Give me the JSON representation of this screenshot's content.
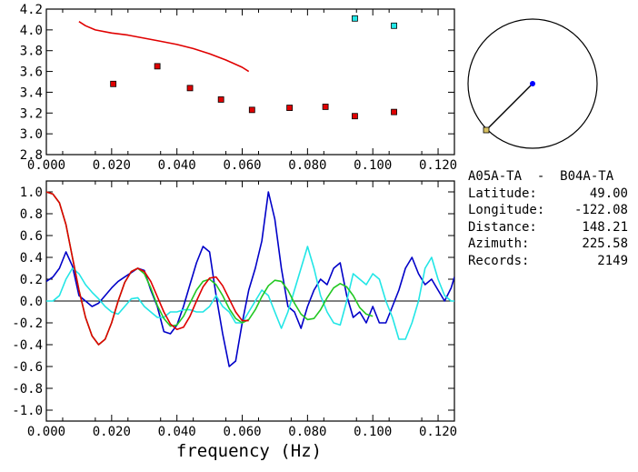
{
  "colors": {
    "red": "#e00000",
    "blue": "#0000c8",
    "cyan": "#22e6e6",
    "green": "#22c822",
    "black": "#000000",
    "map_dot": "#0000ff",
    "map_sq": "#d8c060"
  },
  "station_pair": "A05A-TA  -  B04A-TA",
  "info": [
    {
      "label": "Latitude:",
      "value": "49.00"
    },
    {
      "label": "Longitude:",
      "value": "-122.08"
    },
    {
      "label": "Distance:",
      "value": "148.21"
    },
    {
      "label": "Azimuth:",
      "value": "225.58"
    },
    {
      "label": "Records:",
      "value": "2149"
    }
  ],
  "chart_data": [
    {
      "type": "scatter",
      "title": "",
      "xlabel": "",
      "ylabel": "",
      "xlim": [
        0.0,
        0.125
      ],
      "ylim": [
        2.8,
        4.2
      ],
      "x_ticks": [
        "0.000",
        "0.020",
        "0.040",
        "0.060",
        "0.080",
        "0.100",
        "0.120"
      ],
      "y_ticks": [
        "2.8",
        "3.0",
        "3.2",
        "3.4",
        "3.6",
        "3.8",
        "4.0",
        "4.2"
      ],
      "series": [
        {
          "kind": "line",
          "color": "red",
          "x": [
            0.01,
            0.012,
            0.015,
            0.02,
            0.025,
            0.03,
            0.035,
            0.04,
            0.045,
            0.05,
            0.055,
            0.06,
            0.062
          ],
          "y": [
            4.08,
            4.04,
            4.0,
            3.97,
            3.95,
            3.92,
            3.89,
            3.86,
            3.82,
            3.77,
            3.71,
            3.64,
            3.6
          ]
        },
        {
          "kind": "points",
          "color": "red",
          "x": [
            0.0205,
            0.034,
            0.044,
            0.0535,
            0.063,
            0.0745,
            0.0855,
            0.0945,
            0.1065
          ],
          "y": [
            3.48,
            3.65,
            3.44,
            3.33,
            3.23,
            3.25,
            3.26,
            3.17,
            3.21
          ]
        },
        {
          "kind": "points",
          "color": "cyan",
          "x": [
            0.0945,
            0.1065
          ],
          "y": [
            4.11,
            4.04
          ]
        }
      ]
    },
    {
      "type": "line",
      "title": "",
      "xlabel": "frequency  (Hz)",
      "ylabel": "",
      "xlim": [
        0.0,
        0.125
      ],
      "ylim": [
        -1.1,
        1.1
      ],
      "x_ticks": [
        "0.000",
        "0.020",
        "0.040",
        "0.060",
        "0.080",
        "0.100",
        "0.120"
      ],
      "y_ticks": [
        "1.0",
        "0.8",
        "0.6",
        "0.4",
        "0.2",
        "0.0",
        "-0.2",
        "-0.4",
        "-0.6",
        "-0.8",
        "-1.0"
      ],
      "series": [
        {
          "color": "blue",
          "x": [
            0.0,
            0.002,
            0.004,
            0.006,
            0.008,
            0.01,
            0.012,
            0.014,
            0.016,
            0.018,
            0.02,
            0.022,
            0.024,
            0.026,
            0.028,
            0.03,
            0.032,
            0.034,
            0.036,
            0.038,
            0.04,
            0.042,
            0.044,
            0.046,
            0.048,
            0.05,
            0.052,
            0.054,
            0.056,
            0.058,
            0.06,
            0.062,
            0.064,
            0.066,
            0.068,
            0.07,
            0.072,
            0.074,
            0.076,
            0.078,
            0.08,
            0.082,
            0.084,
            0.086,
            0.088,
            0.09,
            0.092,
            0.094,
            0.096,
            0.098,
            0.1,
            0.102,
            0.104,
            0.106,
            0.108,
            0.11,
            0.112,
            0.114,
            0.116,
            0.118,
            0.12,
            0.122,
            0.124,
            0.125
          ],
          "y": [
            0.18,
            0.22,
            0.3,
            0.45,
            0.32,
            0.05,
            0.0,
            -0.05,
            -0.02,
            0.05,
            0.12,
            0.18,
            0.22,
            0.26,
            0.3,
            0.28,
            0.1,
            -0.05,
            -0.28,
            -0.3,
            -0.22,
            -0.05,
            0.15,
            0.35,
            0.5,
            0.45,
            0.05,
            -0.3,
            -0.6,
            -0.55,
            -0.2,
            0.1,
            0.3,
            0.55,
            1.0,
            0.75,
            0.3,
            -0.05,
            -0.1,
            -0.25,
            -0.05,
            0.1,
            0.2,
            0.15,
            0.3,
            0.35,
            0.05,
            -0.15,
            -0.1,
            -0.2,
            -0.05,
            -0.2,
            -0.2,
            -0.05,
            0.1,
            0.3,
            0.4,
            0.25,
            0.15,
            0.2,
            0.1,
            0.0,
            0.12,
            0.22
          ]
        },
        {
          "color": "cyan",
          "x": [
            0.0,
            0.002,
            0.004,
            0.006,
            0.008,
            0.01,
            0.012,
            0.014,
            0.016,
            0.018,
            0.02,
            0.022,
            0.024,
            0.026,
            0.028,
            0.03,
            0.032,
            0.034,
            0.036,
            0.038,
            0.04,
            0.042,
            0.044,
            0.046,
            0.048,
            0.05,
            0.052,
            0.054,
            0.056,
            0.058,
            0.06,
            0.062,
            0.064,
            0.066,
            0.068,
            0.07,
            0.072,
            0.074,
            0.076,
            0.078,
            0.08,
            0.082,
            0.084,
            0.086,
            0.088,
            0.09,
            0.092,
            0.094,
            0.096,
            0.098,
            0.1,
            0.102,
            0.104,
            0.106,
            0.108,
            0.11,
            0.112,
            0.114,
            0.116,
            0.118,
            0.12,
            0.122,
            0.124,
            0.125
          ],
          "y": [
            0.0,
            0.0,
            0.05,
            0.2,
            0.3,
            0.25,
            0.15,
            0.08,
            0.02,
            -0.05,
            -0.1,
            -0.12,
            -0.05,
            0.02,
            0.03,
            -0.05,
            -0.1,
            -0.15,
            -0.15,
            -0.1,
            -0.1,
            -0.08,
            -0.08,
            -0.1,
            -0.1,
            -0.05,
            0.05,
            -0.05,
            -0.1,
            -0.2,
            -0.2,
            -0.1,
            0.0,
            0.1,
            0.05,
            -0.1,
            -0.25,
            -0.1,
            0.1,
            0.3,
            0.5,
            0.3,
            0.05,
            -0.1,
            -0.2,
            -0.22,
            0.0,
            0.25,
            0.2,
            0.15,
            0.25,
            0.2,
            0.0,
            -0.15,
            -0.35,
            -0.35,
            -0.2,
            0.0,
            0.3,
            0.4,
            0.2,
            0.05,
            0.0,
            0.0
          ]
        },
        {
          "color": "green",
          "x": [
            0.0,
            0.002,
            0.004,
            0.006,
            0.008,
            0.01,
            0.012,
            0.014,
            0.016,
            0.018,
            0.02,
            0.022,
            0.024,
            0.026,
            0.028,
            0.03,
            0.032,
            0.034,
            0.036,
            0.038,
            0.04,
            0.042,
            0.044,
            0.046,
            0.048,
            0.05,
            0.052,
            0.054,
            0.056,
            0.058,
            0.06,
            0.062,
            0.064,
            0.066,
            0.068,
            0.07,
            0.072,
            0.074,
            0.076,
            0.078,
            0.08,
            0.082,
            0.084,
            0.086,
            0.088,
            0.09,
            0.092,
            0.094,
            0.096,
            0.098,
            0.1
          ],
          "y": [
            1.0,
            0.98,
            0.9,
            0.7,
            0.4,
            0.1,
            -0.15,
            -0.32,
            -0.4,
            -0.35,
            -0.2,
            0.0,
            0.17,
            0.27,
            0.3,
            0.25,
            0.12,
            -0.04,
            -0.16,
            -0.23,
            -0.22,
            -0.14,
            -0.02,
            0.1,
            0.18,
            0.2,
            0.15,
            0.05,
            -0.07,
            -0.16,
            -0.2,
            -0.17,
            -0.08,
            0.04,
            0.14,
            0.19,
            0.18,
            0.1,
            -0.02,
            -0.12,
            -0.17,
            -0.16,
            -0.08,
            0.03,
            0.12,
            0.16,
            0.13,
            0.05,
            -0.06,
            -0.12,
            -0.14
          ]
        },
        {
          "color": "red",
          "x": [
            0.0,
            0.002,
            0.004,
            0.006,
            0.008,
            0.01,
            0.012,
            0.014,
            0.016,
            0.018,
            0.02,
            0.022,
            0.024,
            0.026,
            0.028,
            0.03,
            0.032,
            0.034,
            0.036,
            0.038,
            0.04,
            0.042,
            0.044,
            0.046,
            0.048,
            0.05,
            0.052,
            0.054,
            0.056,
            0.058,
            0.06,
            0.062
          ],
          "y": [
            1.0,
            0.98,
            0.9,
            0.7,
            0.4,
            0.1,
            -0.15,
            -0.32,
            -0.4,
            -0.35,
            -0.2,
            0.0,
            0.17,
            0.27,
            0.3,
            0.27,
            0.18,
            0.04,
            -0.1,
            -0.21,
            -0.26,
            -0.24,
            -0.14,
            0.0,
            0.13,
            0.21,
            0.22,
            0.14,
            0.02,
            -0.1,
            -0.18,
            -0.18
          ]
        }
      ],
      "zero_line": true
    }
  ]
}
